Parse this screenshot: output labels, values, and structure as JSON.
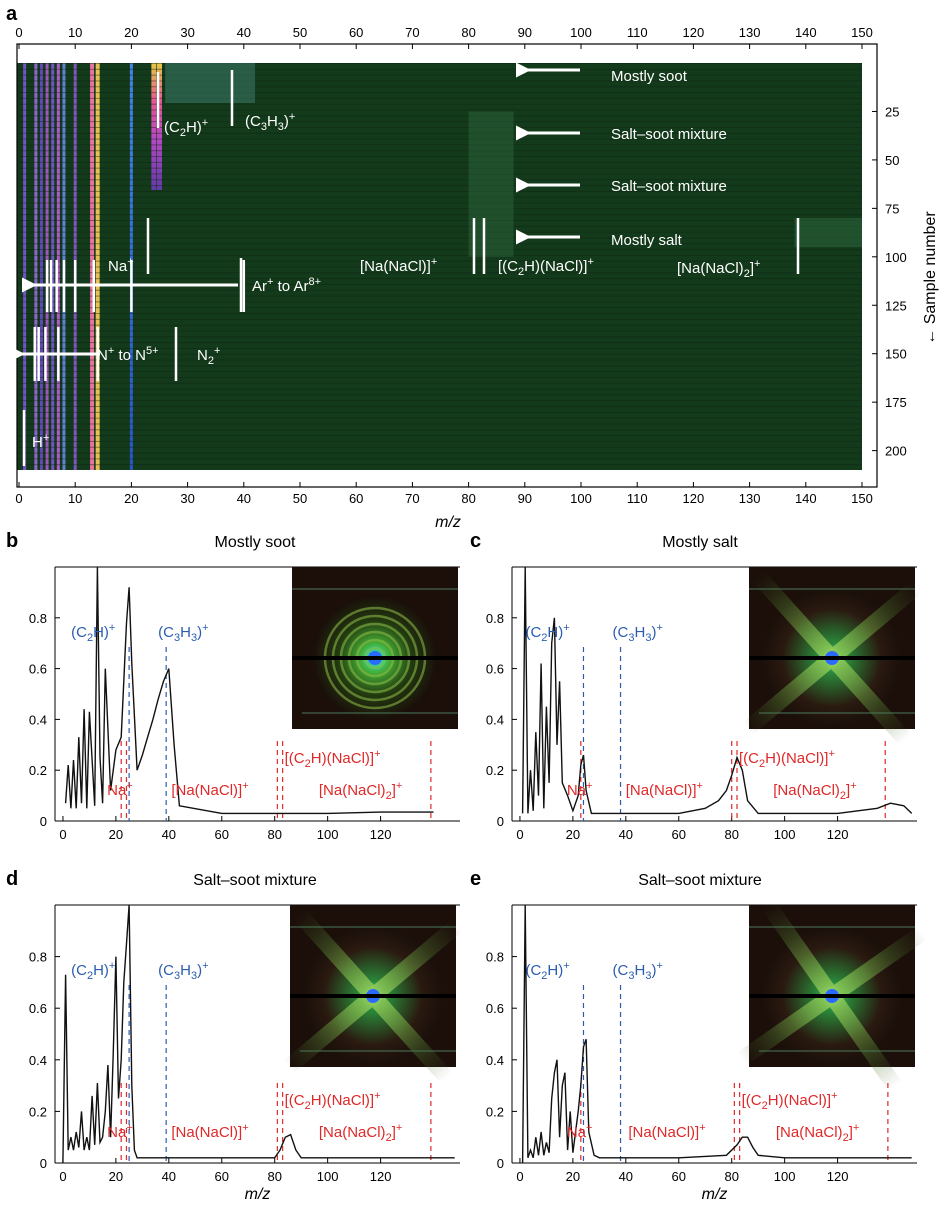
{
  "figure": {
    "panel_a": {
      "letter": "a",
      "x_ticks": [
        "0",
        "10",
        "20",
        "30",
        "40",
        "50",
        "60",
        "70",
        "80",
        "90",
        "100",
        "110",
        "120",
        "130",
        "140",
        "150"
      ],
      "y_ticks": [
        "25",
        "50",
        "75",
        "100",
        "125",
        "150",
        "175",
        "200"
      ],
      "xlabel": "m/z",
      "ylabel": "← Sample number",
      "arrow_labels": [
        "Mostly soot",
        "Salt–soot mixture",
        "Salt–soot mixture",
        "Mostly salt"
      ],
      "peak_labels": {
        "c2h": "(C",
        "c2h_sub": "2",
        "c2h_end": "H)",
        "c3h3": "(C",
        "c3h3_sub1": "3",
        "c3h3_mid": "H",
        "c3h3_sub2": "3",
        "c3h3_end": ")",
        "na": "Na",
        "nanacl": "[Na(NaCl)]",
        "c2hnacl_a": "[(C",
        "c2hnacl_sub": "2",
        "c2hnacl_b": "H)(NaCl)]",
        "nanacl2_a": "[Na(NaCl)",
        "nanacl2_sub": "2",
        "nanacl2_b": "]",
        "ar_a": "Ar",
        "ar_mid": " to Ar",
        "ar_sup": "8+",
        "n_a": "N",
        "n_mid": " to N",
        "n_sup": "5+",
        "n2": "N",
        "n2_sub": "2",
        "h": "H",
        "plus": "+"
      }
    },
    "panels": [
      {
        "letter": "b",
        "title": "Mostly soot"
      },
      {
        "letter": "c",
        "title": "Mostly salt"
      },
      {
        "letter": "d",
        "title": "Salt–soot mixture"
      },
      {
        "letter": "e",
        "title": "Salt–soot mixture"
      }
    ],
    "spectrum_x_ticks": [
      "0",
      "20",
      "40",
      "60",
      "80",
      "100",
      "120"
    ],
    "spectrum_y_ticks": [
      "0",
      "0.2",
      "0.4",
      "0.6",
      "0.8"
    ],
    "spectrum_xlabel": "m/z"
  },
  "colors": {
    "heatmap_bg": "#143a1c",
    "blue_marker": "#2a5db0",
    "red_marker": "#e02828"
  },
  "chart_data": [
    {
      "type": "heatmap",
      "panel": "a",
      "xlabel": "m/z",
      "ylabel": "← Sample number",
      "xlim": [
        0,
        150
      ],
      "ylim": [
        210,
        0
      ],
      "bright_columns_mz": [
        1,
        3,
        4,
        5,
        6,
        7,
        8,
        10,
        13,
        14,
        20,
        24,
        25
      ],
      "annotations": [
        {
          "text": "Mostly soot",
          "sample": 5
        },
        {
          "text": "Salt–soot mixture",
          "sample": 32
        },
        {
          "text": "Salt–soot mixture",
          "sample": 58
        },
        {
          "text": "Mostly salt",
          "sample": 84
        }
      ]
    },
    {
      "type": "line",
      "panel": "b",
      "title": "Mostly soot",
      "xlabel": "",
      "ylabel": "",
      "xlim": [
        -3,
        150
      ],
      "ylim": [
        0,
        1.0
      ],
      "x": [
        1,
        2,
        3,
        4,
        5,
        6,
        7,
        8,
        9,
        10,
        12,
        13,
        14,
        15,
        16,
        18,
        20,
        22,
        24,
        25,
        26,
        28,
        30,
        32,
        34,
        36,
        38,
        40,
        42,
        44,
        60,
        80,
        100,
        120,
        140
      ],
      "y": [
        0.07,
        0.22,
        0.05,
        0.24,
        0.05,
        0.33,
        0.07,
        0.44,
        0.05,
        0.43,
        0.06,
        1.0,
        0.25,
        0.07,
        0.6,
        0.12,
        0.28,
        0.33,
        0.78,
        0.92,
        0.62,
        0.2,
        0.26,
        0.33,
        0.4,
        0.48,
        0.55,
        0.6,
        0.3,
        0.06,
        0.03,
        0.03,
        0.03,
        0.035,
        0.035
      ],
      "markers_blue": [
        {
          "mz": 25,
          "label": "(C2H)+"
        },
        {
          "mz": 39,
          "label": "(C3H3)+"
        }
      ],
      "markers_red": [
        {
          "mz": 22,
          "label": "Na+"
        },
        {
          "mz": 24
        },
        {
          "mz": 81,
          "label": "[Na(NaCl)]+"
        },
        {
          "mz": 83,
          "label": "[(C2H)(NaCl)]+"
        },
        {
          "mz": 139,
          "label": "[Na(NaCl)2]+"
        }
      ]
    },
    {
      "type": "line",
      "panel": "c",
      "title": "Mostly salt",
      "xlabel": "",
      "ylabel": "",
      "xlim": [
        -3,
        150
      ],
      "ylim": [
        0,
        1.0
      ],
      "x": [
        1,
        2,
        3,
        4,
        5,
        6,
        7,
        8,
        9,
        10,
        11,
        12,
        13,
        14,
        15,
        16,
        18,
        20,
        22,
        23,
        24,
        25,
        27,
        30,
        40,
        60,
        70,
        75,
        78,
        80,
        82,
        84,
        86,
        90,
        100,
        120,
        135,
        140,
        145,
        148
      ],
      "y": [
        0.03,
        1.0,
        0.03,
        0.2,
        0.04,
        0.35,
        0.1,
        0.62,
        0.05,
        0.45,
        0.15,
        0.7,
        0.8,
        0.3,
        0.55,
        0.15,
        0.1,
        0.04,
        0.1,
        0.22,
        0.26,
        0.12,
        0.03,
        0.03,
        0.03,
        0.03,
        0.05,
        0.08,
        0.12,
        0.18,
        0.25,
        0.2,
        0.08,
        0.03,
        0.03,
        0.03,
        0.05,
        0.07,
        0.06,
        0.03
      ],
      "markers_blue": [
        {
          "mz": 24,
          "label": "(C2H)+"
        },
        {
          "mz": 38,
          "label": "(C3H3)+"
        }
      ],
      "markers_red": [
        {
          "mz": 23,
          "label": "Na+"
        },
        {
          "mz": 80,
          "label": "[Na(NaCl)]+"
        },
        {
          "mz": 82,
          "label": "[(C2H)(NaCl)]+"
        },
        {
          "mz": 138,
          "label": "[Na(NaCl)2]+"
        }
      ]
    },
    {
      "type": "line",
      "panel": "d",
      "title": "Salt–soot mixture",
      "xlabel": "m/z",
      "ylabel": "",
      "xlim": [
        -3,
        150
      ],
      "ylim": [
        0,
        1.0
      ],
      "x": [
        0,
        1,
        2,
        3,
        4,
        5,
        6,
        7,
        8,
        9,
        10,
        11,
        12,
        13,
        14,
        15,
        16,
        17,
        18,
        19,
        20,
        21,
        22,
        23,
        24,
        25,
        26,
        27,
        28,
        30,
        40,
        60,
        80,
        82,
        84,
        86,
        88,
        90,
        100,
        120,
        140,
        148
      ],
      "y": [
        0.0,
        0.73,
        0.05,
        0.1,
        0.05,
        0.12,
        0.06,
        0.2,
        0.05,
        0.1,
        0.05,
        0.26,
        0.07,
        0.31,
        0.08,
        0.1,
        0.2,
        0.38,
        0.1,
        0.42,
        0.8,
        0.25,
        0.4,
        0.7,
        0.85,
        1.0,
        0.3,
        0.05,
        0.02,
        0.02,
        0.02,
        0.02,
        0.02,
        0.05,
        0.1,
        0.11,
        0.05,
        0.02,
        0.02,
        0.02,
        0.02,
        0.02
      ],
      "markers_blue": [
        {
          "mz": 25,
          "label": "(C2H)+"
        },
        {
          "mz": 39,
          "label": "(C3H3)+"
        }
      ],
      "markers_red": [
        {
          "mz": 22,
          "label": "Na+"
        },
        {
          "mz": 24
        },
        {
          "mz": 81,
          "label": "[Na(NaCl)]+"
        },
        {
          "mz": 83,
          "label": "[(C2H)(NaCl)]+"
        },
        {
          "mz": 139,
          "label": "[Na(NaCl)2]+"
        }
      ]
    },
    {
      "type": "line",
      "panel": "e",
      "title": "Salt–soot mixture",
      "xlabel": "m/z",
      "ylabel": "",
      "xlim": [
        -3,
        150
      ],
      "ylim": [
        0,
        1.0
      ],
      "x": [
        1,
        2,
        3,
        4,
        5,
        6,
        7,
        8,
        9,
        10,
        11,
        12,
        13,
        14,
        15,
        16,
        17,
        18,
        19,
        20,
        22,
        23,
        24,
        25,
        26,
        28,
        30,
        40,
        60,
        78,
        82,
        84,
        86,
        88,
        90,
        100,
        120,
        140,
        148
      ],
      "y": [
        0.0,
        1.0,
        0.02,
        0.05,
        0.02,
        0.1,
        0.03,
        0.12,
        0.03,
        0.08,
        0.04,
        0.25,
        0.35,
        0.4,
        0.1,
        0.3,
        0.35,
        0.05,
        0.2,
        0.04,
        0.2,
        0.3,
        0.45,
        0.48,
        0.12,
        0.03,
        0.02,
        0.02,
        0.02,
        0.03,
        0.07,
        0.1,
        0.1,
        0.06,
        0.03,
        0.02,
        0.02,
        0.02,
        0.02
      ],
      "markers_blue": [
        {
          "mz": 24,
          "label": "(C2H)+"
        },
        {
          "mz": 38,
          "label": "(C3H3)+"
        }
      ],
      "markers_red": [
        {
          "mz": 23,
          "label": "Na+"
        },
        {
          "mz": 81,
          "label": "[Na(NaCl)]+"
        },
        {
          "mz": 83,
          "label": "[(C2H)(NaCl)]+"
        },
        {
          "mz": 139,
          "label": "[Na(NaCl)2]+"
        }
      ]
    }
  ]
}
